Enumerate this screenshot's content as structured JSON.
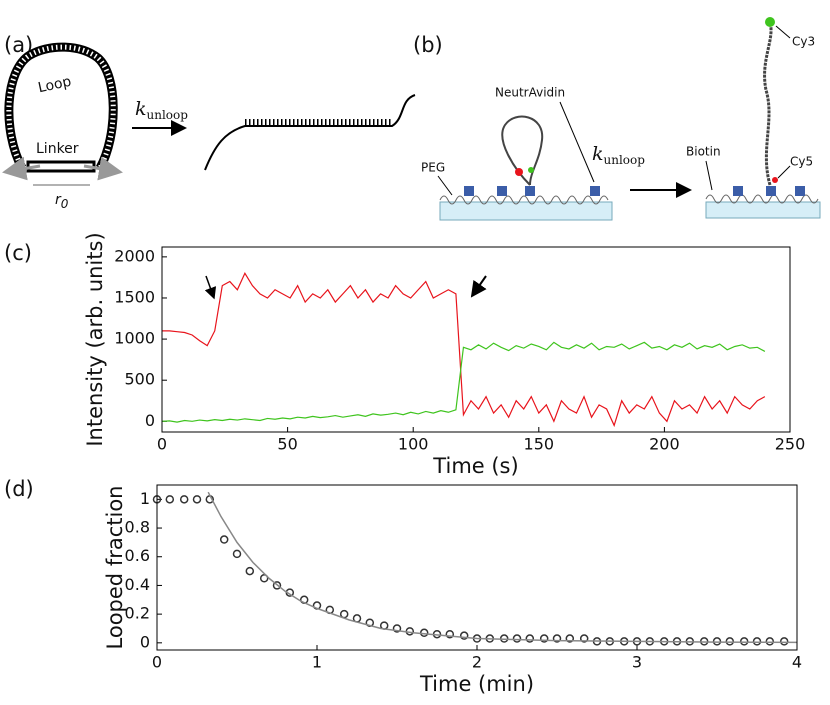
{
  "panel_a": {
    "label": "(a)",
    "loop": "Loop",
    "linker": "Linker",
    "r0": {
      "symbol": "r",
      "subscript": "0"
    },
    "rate": {
      "symbol": "k",
      "subscript": "unloop"
    }
  },
  "panel_b": {
    "label": "(b)",
    "neutravidin": "NeutrAvidin",
    "peg": "PEG",
    "rate": {
      "symbol": "k",
      "subscript": "unloop"
    },
    "biotin": "Biotin",
    "cy5": "Cy5",
    "cy3": "Cy3"
  },
  "chart_data": [
    {
      "type": "line",
      "panel_label": "(c)",
      "ylabel": "Intensity (arb. units)",
      "xlabel": "Time (s)",
      "xlim": [
        0,
        250
      ],
      "ylim": [
        -130,
        2120
      ],
      "xticks": [
        0,
        50,
        100,
        150,
        200,
        250
      ],
      "yticks": [
        0,
        500,
        1000,
        1500,
        2000
      ],
      "x": [
        0,
        3,
        6,
        9,
        12,
        15,
        18,
        21,
        24,
        27,
        30,
        33,
        36,
        39,
        42,
        45,
        48,
        51,
        54,
        57,
        60,
        63,
        66,
        69,
        72,
        75,
        78,
        81,
        84,
        87,
        90,
        93,
        96,
        99,
        102,
        105,
        108,
        111,
        114,
        117,
        120,
        123,
        126,
        129,
        132,
        135,
        138,
        141,
        144,
        147,
        150,
        153,
        156,
        159,
        162,
        165,
        168,
        171,
        174,
        177,
        180,
        183,
        186,
        189,
        192,
        195,
        198,
        201,
        204,
        207,
        210,
        213,
        216,
        219,
        222,
        225,
        228,
        231,
        234,
        237,
        240
      ],
      "series": [
        {
          "color": "#e8141c",
          "values": [
            1100,
            1100,
            1090,
            1080,
            1050,
            980,
            920,
            1100,
            1650,
            1700,
            1600,
            1800,
            1650,
            1550,
            1500,
            1600,
            1550,
            1500,
            1650,
            1450,
            1550,
            1500,
            1600,
            1450,
            1550,
            1650,
            1500,
            1600,
            1450,
            1550,
            1500,
            1650,
            1550,
            1500,
            1600,
            1700,
            1500,
            1550,
            1600,
            1550,
            80,
            250,
            150,
            300,
            100,
            200,
            50,
            250,
            150,
            300,
            100,
            200,
            0,
            250,
            150,
            100,
            300,
            50,
            200,
            150,
            -50,
            250,
            100,
            200,
            150,
            300,
            100,
            0,
            250,
            150,
            200,
            100,
            300,
            150,
            250,
            100,
            300,
            200,
            150,
            250,
            300
          ]
        },
        {
          "color": "#3fc41e",
          "values": [
            0,
            5,
            -10,
            10,
            0,
            15,
            5,
            20,
            10,
            25,
            15,
            30,
            20,
            10,
            35,
            25,
            40,
            30,
            50,
            40,
            60,
            45,
            55,
            70,
            50,
            65,
            80,
            60,
            90,
            75,
            85,
            100,
            80,
            110,
            90,
            120,
            100,
            130,
            110,
            140,
            900,
            870,
            930,
            880,
            950,
            900,
            860,
            920,
            890,
            940,
            910,
            870,
            960,
            900,
            880,
            930,
            890,
            950,
            870,
            910,
            900,
            940,
            880,
            920,
            960,
            890,
            910,
            870,
            930,
            900,
            950,
            880,
            920,
            900,
            940,
            870,
            910,
            930,
            890,
            900,
            850
          ]
        }
      ]
    },
    {
      "type": "scatter",
      "panel_label": "(d)",
      "ylabel": "Looped fraction",
      "xlabel": "Time (min)",
      "xlim": [
        0,
        4
      ],
      "ylim": [
        -0.05,
        1.1
      ],
      "xticks": [
        0,
        1,
        2,
        3,
        4
      ],
      "yticks": [
        0,
        0.2,
        0.4,
        0.6,
        0.8,
        1
      ],
      "series": [
        {
          "kind": "points",
          "color": "#333333",
          "x": [
            0,
            0.08,
            0.17,
            0.25,
            0.33,
            0.42,
            0.5,
            0.58,
            0.67,
            0.75,
            0.83,
            0.92,
            1,
            1.08,
            1.17,
            1.25,
            1.33,
            1.42,
            1.5,
            1.58,
            1.67,
            1.75,
            1.83,
            1.92,
            2,
            2.08,
            2.17,
            2.25,
            2.33,
            2.42,
            2.5,
            2.58,
            2.67,
            2.75,
            2.83,
            2.92,
            3,
            3.08,
            3.17,
            3.25,
            3.33,
            3.42,
            3.5,
            3.58,
            3.67,
            3.75,
            3.83,
            3.92
          ],
          "values": [
            1,
            1,
            1,
            1,
            1,
            0.72,
            0.62,
            0.5,
            0.45,
            0.4,
            0.35,
            0.3,
            0.26,
            0.23,
            0.2,
            0.17,
            0.14,
            0.12,
            0.1,
            0.08,
            0.07,
            0.06,
            0.06,
            0.05,
            0.03,
            0.03,
            0.03,
            0.03,
            0.03,
            0.03,
            0.03,
            0.03,
            0.03,
            0.01,
            0.01,
            0.01,
            0.01,
            0.01,
            0.01,
            0.01,
            0.01,
            0.01,
            0.01,
            0.01,
            0.01,
            0.01,
            0.01,
            0.01
          ]
        },
        {
          "kind": "line",
          "color": "#888888",
          "x": [
            0.32,
            0.4,
            0.5,
            0.6,
            0.7,
            0.8,
            0.9,
            1,
            1.2,
            1.4,
            1.6,
            1.8,
            2,
            2.5,
            3,
            3.5,
            4
          ],
          "values": [
            1.05,
            0.88,
            0.7,
            0.56,
            0.45,
            0.36,
            0.29,
            0.24,
            0.16,
            0.1,
            0.07,
            0.05,
            0.03,
            0.015,
            0.01,
            0.005,
            0.003
          ]
        }
      ]
    }
  ]
}
